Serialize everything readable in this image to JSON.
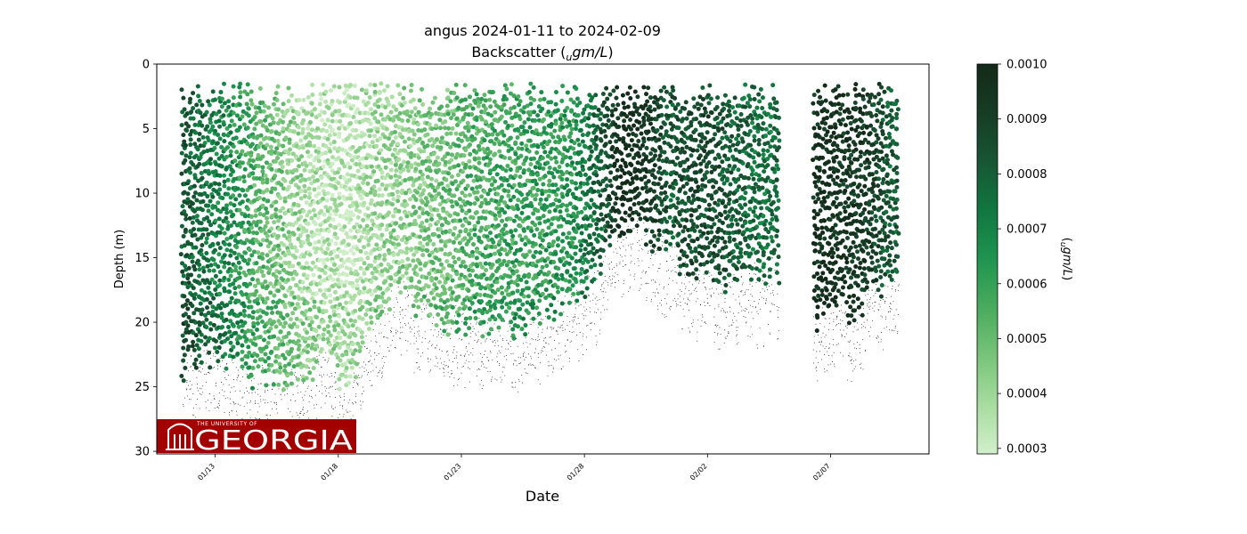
{
  "chart_data": {
    "type": "scatter",
    "title_line1": "angus 2024-01-11 to 2024-02-09",
    "title_line2_prefix": "Backscatter (",
    "title_line2_sub": "u",
    "title_line2_unit": "gm/L",
    "title_line2_suffix": ")",
    "xlabel": "Date",
    "ylabel": "Depth (m)",
    "x_range": [
      "2024-01-10T15:00",
      "2024-02-11T00:00"
    ],
    "ylim": [
      30.2,
      0
    ],
    "y_inverted": true,
    "yticks": [
      0,
      5,
      10,
      15,
      20,
      25,
      30
    ],
    "xticks": [
      {
        "date": "2024-01-13",
        "label": "01/13"
      },
      {
        "date": "2024-01-18",
        "label": "01/18"
      },
      {
        "date": "2024-01-23",
        "label": "01/23"
      },
      {
        "date": "2024-01-28",
        "label": "01/28"
      },
      {
        "date": "2024-02-02",
        "label": "02/02"
      },
      {
        "date": "2024-02-07",
        "label": "02/07"
      }
    ],
    "colorbar": {
      "label_sub": "u",
      "label_unit": "gm/L",
      "range": [
        0.00029,
        0.001
      ],
      "ticks": [
        "0.0003",
        "0.0004",
        "0.0005",
        "0.0006",
        "0.0007",
        "0.0008",
        "0.0009",
        "0.0010"
      ],
      "tick_values": [
        0.0003,
        0.0004,
        0.0005,
        0.0006,
        0.0007,
        0.0008,
        0.0009,
        0.001
      ],
      "colors": [
        "#d2efcb",
        "#a8dca0",
        "#78c47a",
        "#49ab5d",
        "#1f9450",
        "#10773f",
        "#175634",
        "#173c25",
        "#132a19"
      ]
    },
    "data_gaps": [
      [
        "2024-02-04T21:00",
        "2024-02-06T06:00"
      ]
    ],
    "series": [
      {
        "x": [
          "2024-01-11T12:00",
          "2024-01-12T12:00",
          "2024-01-13T12:00",
          "2024-01-14T12:00",
          "2024-01-15T12:00",
          "2024-01-16T12:00",
          "2024-01-17T12:00",
          "2024-01-18T12:00",
          "2024-01-19T12:00",
          "2024-01-20T12:00",
          "2024-01-21T12:00",
          "2024-01-22T12:00",
          "2024-01-23T12:00",
          "2024-01-24T12:00",
          "2024-01-25T12:00",
          "2024-01-26T12:00",
          "2024-01-27T12:00",
          "2024-01-28T12:00",
          "2024-01-29T12:00",
          "2024-01-30T12:00",
          "2024-01-31T12:00",
          "2024-02-01T12:00",
          "2024-02-02T12:00",
          "2024-02-03T12:00",
          "2024-02-04T12:00",
          "2024-02-06T12:00",
          "2024-02-07T12:00",
          "2024-02-08T12:00",
          "2024-02-09T12:00"
        ],
        "max_depth": [
          27,
          24,
          25,
          26,
          27,
          26,
          25,
          27,
          21,
          20,
          21,
          22,
          22,
          22,
          22,
          21,
          20,
          18,
          14,
          15,
          17,
          18,
          19,
          19,
          18,
          22,
          21,
          20,
          19
        ],
        "backscatter": [
          0.00085,
          0.00075,
          0.00068,
          0.00055,
          0.00048,
          0.0004,
          0.00036,
          0.00034,
          0.0004,
          0.00043,
          0.00046,
          0.0005,
          0.00055,
          0.00058,
          0.0006,
          0.00062,
          0.00065,
          0.00078,
          0.001,
          0.00095,
          0.00082,
          0.00088,
          0.00084,
          0.00078,
          0.00074,
          0.00098,
          0.00095,
          0.00093,
          0.0008
        ]
      }
    ]
  },
  "logo": {
    "small_text": "THE UNIVERSITY OF",
    "big_text": "GEORGIA",
    "bg_color": "#a30000"
  }
}
